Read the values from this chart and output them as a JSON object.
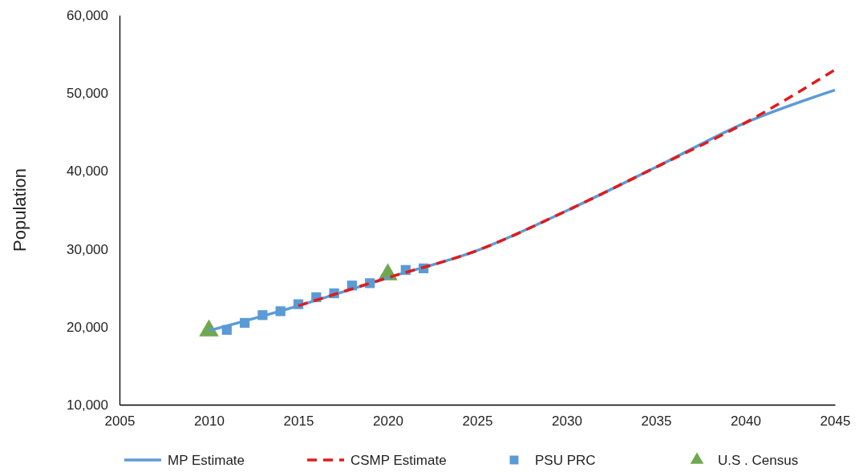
{
  "chart_data": {
    "type": "line",
    "ylabel": "Population",
    "xlim": [
      2005,
      2045
    ],
    "xticks": [
      2005,
      2010,
      2015,
      2020,
      2025,
      2030,
      2035,
      2040,
      2045
    ],
    "ylim": [
      10000,
      60000
    ],
    "yticks": [
      {
        "value": 10000,
        "label": "10,000"
      },
      {
        "value": 20000,
        "label": "20,000"
      },
      {
        "value": 30000,
        "label": "30,000"
      },
      {
        "value": 40000,
        "label": "40,000"
      },
      {
        "value": 50000,
        "label": "50,000"
      },
      {
        "value": 60000,
        "label": "60,000"
      }
    ],
    "grid": false,
    "legend": "bottom",
    "series": [
      {
        "name": "MP Estimate",
        "line_style": "solid",
        "color": "#5b9bd5",
        "x": [
          2010,
          2015,
          2020,
          2025,
          2030,
          2035,
          2040,
          2045
        ],
        "values": [
          19500,
          22700,
          26300,
          29800,
          34900,
          40500,
          46200,
          50400
        ]
      },
      {
        "name": "CSMP Estimate",
        "line_style": "dashed",
        "color": "#e31a1c",
        "x": [
          2015,
          2020,
          2025,
          2030,
          2035,
          2040,
          2045
        ],
        "values": [
          22700,
          26300,
          29800,
          34900,
          40500,
          46200,
          53000
        ]
      },
      {
        "name": "PSU PRC",
        "type": "scatter",
        "marker": "square",
        "color": "#5b9bd5",
        "x": [
          2011,
          2012,
          2013,
          2014,
          2015,
          2016,
          2017,
          2018,
          2019,
          2020,
          2021,
          2022
        ],
        "values": [
          19600,
          20500,
          21500,
          22000,
          22900,
          23800,
          24300,
          25300,
          25600,
          null,
          27300,
          27500
        ]
      },
      {
        "name": "U.S . Census",
        "type": "scatter",
        "marker": "triangle",
        "color": "#70a84f",
        "x": [
          2010,
          2020
        ],
        "values": [
          19500,
          26700
        ]
      }
    ]
  }
}
